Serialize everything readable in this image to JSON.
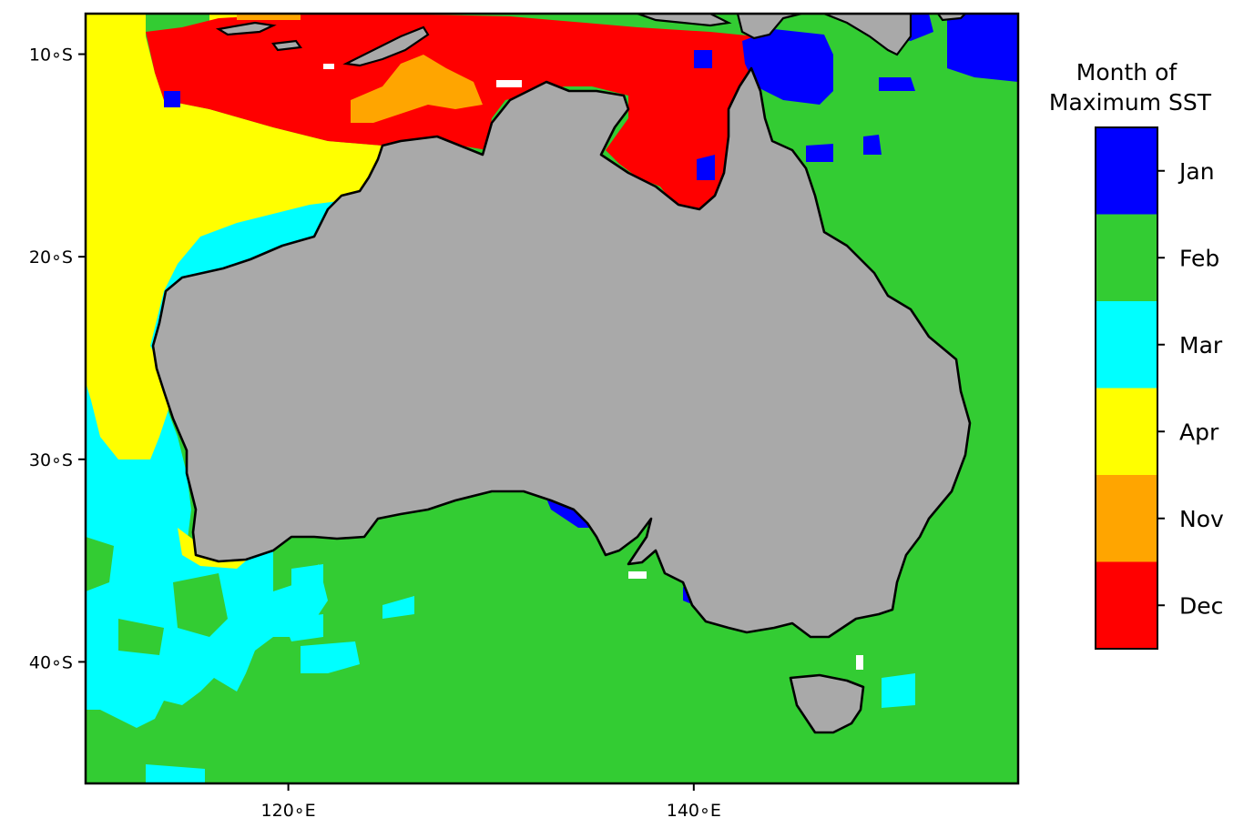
{
  "map": {
    "lon_range": [
      110,
      156
    ],
    "lat_range": [
      -46,
      -8
    ],
    "lat_ticks": [
      {
        "value": -10,
        "label": "10$^\\circ$S",
        "text": "10∘S"
      },
      {
        "value": -20,
        "label": "20∘S",
        "text": "20∘S"
      },
      {
        "value": -30,
        "label": "30∘S",
        "text": "30∘S"
      },
      {
        "value": -40,
        "label": "40∘S",
        "text": "40∘S"
      }
    ],
    "lon_ticks": [
      {
        "value": 120,
        "text": "120∘E"
      },
      {
        "value": 140,
        "text": "140∘E"
      }
    ],
    "land_color": "#a9a9a9",
    "coastline_color": "#000000"
  },
  "colorbar": {
    "title_line1": "Month of",
    "title_line2": "Maximum SST",
    "entries": [
      {
        "label": "Jan",
        "color": "#0000ff"
      },
      {
        "label": "Feb",
        "color": "#33cc33"
      },
      {
        "label": "Mar",
        "color": "#00ffff"
      },
      {
        "label": "Apr",
        "color": "#ffff00"
      },
      {
        "label": "Nov",
        "color": "#ffa500"
      },
      {
        "label": "Dec",
        "color": "#ff0000"
      }
    ]
  }
}
